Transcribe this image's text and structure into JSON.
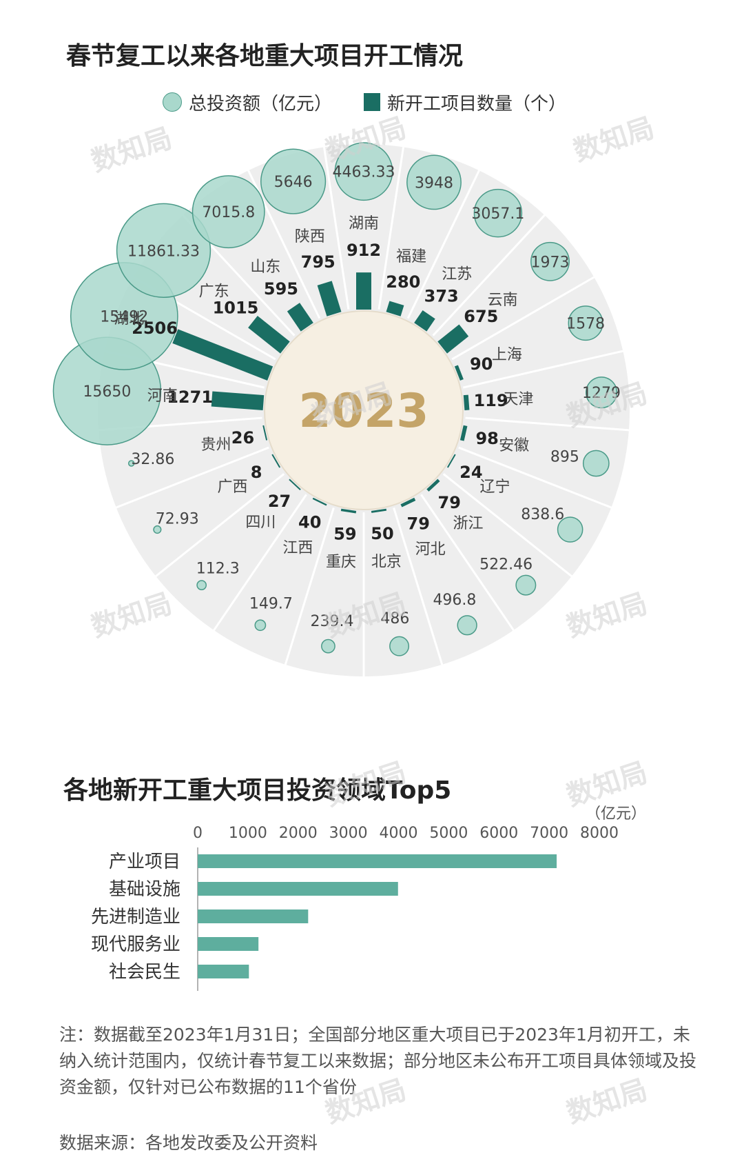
{
  "title1": "春节复工以来各地重大项目开工情况",
  "legend": {
    "bubble": "总投资额（亿元）",
    "bar": "新开工项目数量（个）"
  },
  "center_label": "2023",
  "title2": "各地新开工重大项目投资领域Top5",
  "bar_unit": "（亿元）",
  "note": "注：数据截至2023年1月31日；全国部分地区重大项目已于2023年1月初开工，未纳入统计范围内，仅统计春节复工以来数据；部分地区未公布开工项目具体领域及投资金额，仅针对已公布数据的11个省份",
  "source": "数据来源：各地发改委及公开资料",
  "watermark": "数知局",
  "colors": {
    "bar": "#1a6e63",
    "bubble_fill": "#a9d8cc",
    "bubble_stroke": "#4a9a88",
    "center_fill": "#f6efe2",
    "center_text": "#c4a468",
    "fan": "#eeeeee",
    "hbar": "#5eae9e"
  },
  "chart_data": [
    {
      "type": "radial-bar-bubble",
      "series": [
        {
          "name": "新开工项目数量（个）",
          "type": "bar"
        },
        {
          "name": "总投资额（亿元）",
          "type": "bubble"
        }
      ],
      "regions": [
        {
          "name": "湖南",
          "count": 912,
          "count_label": "912",
          "investment": "4463.33"
        },
        {
          "name": "福建",
          "count": 280,
          "count_label": "280",
          "investment": "3948"
        },
        {
          "name": "江苏",
          "count": 373,
          "count_label": "373",
          "investment": "3057.1"
        },
        {
          "name": "云南",
          "count": 675,
          "count_label": "675",
          "investment": "1973"
        },
        {
          "name": "上海",
          "count": 90,
          "count_label": "90",
          "investment": "1578"
        },
        {
          "name": "天津",
          "count": 119,
          "count_label": "119",
          "investment": "1279"
        },
        {
          "name": "安徽",
          "count": 98,
          "count_label": "98",
          "investment": "895"
        },
        {
          "name": "辽宁",
          "count": 24,
          "count_label": "24",
          "investment": "838.6"
        },
        {
          "name": "浙江",
          "count": 79,
          "count_label": "79",
          "investment": "522.46"
        },
        {
          "name": "河北",
          "count": 79,
          "count_label": "79",
          "investment": "496.8"
        },
        {
          "name": "北京",
          "count": 50,
          "count_label": "50",
          "investment": "486"
        },
        {
          "name": "重庆",
          "count": 59,
          "count_label": "59",
          "investment": "239.4"
        },
        {
          "name": "江西",
          "count": 40,
          "count_label": "40",
          "investment": "149.7"
        },
        {
          "name": "四川",
          "count": 27,
          "count_label": "27",
          "investment": "112.3"
        },
        {
          "name": "广西",
          "count": 8,
          "count_label": "8",
          "investment": "72.93"
        },
        {
          "name": "贵州",
          "count": 26,
          "count_label": "26",
          "investment": "32.86"
        },
        {
          "name": "河南",
          "count": 1271,
          "count_label": "1271",
          "investment": "15650"
        },
        {
          "name": "湖北",
          "count": 2506,
          "count_label": "2506",
          "investment": "15492"
        },
        {
          "name": "广东",
          "count": 1015,
          "count_label": "1015",
          "investment": "11861.33"
        },
        {
          "name": "山东",
          "count": 595,
          "count_label": "595",
          "investment": "7015.8"
        },
        {
          "name": "陕西",
          "count": 795,
          "count_label": "795",
          "investment": "5646"
        }
      ]
    },
    {
      "type": "bar",
      "orientation": "horizontal",
      "categories": [
        "产业项目",
        "基础设施",
        "先进制造业",
        "现代服务业",
        "社会民生"
      ],
      "values": [
        7150,
        3990,
        2200,
        1210,
        1020
      ],
      "xlim": [
        0,
        8000
      ],
      "xticks": [
        "0",
        "1000",
        "2000",
        "3000",
        "4000",
        "5000",
        "6000",
        "7000",
        "8000"
      ],
      "unit": "（亿元）"
    }
  ]
}
